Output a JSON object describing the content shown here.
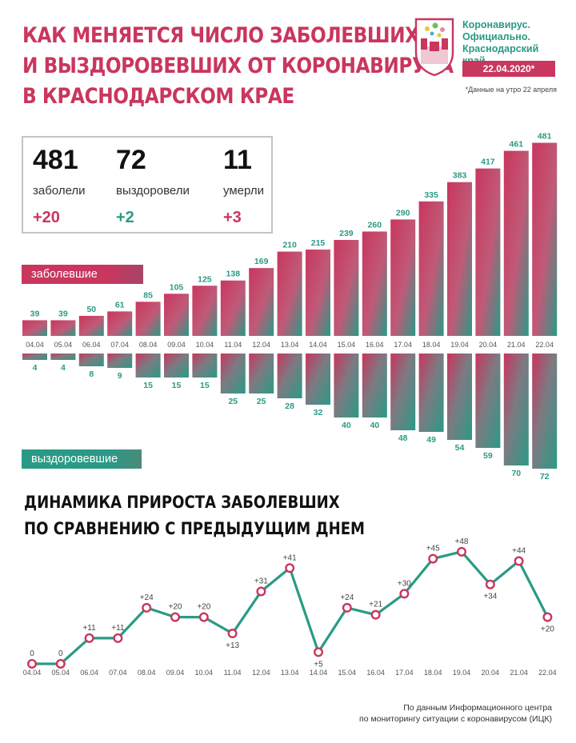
{
  "header": {
    "title_lines": [
      "КАК МЕНЯЕТСЯ ЧИСЛО ЗАБОЛЕВШИХ",
      "И ВЫЗДОРОВЕВШИХ ОТ КОРОНАВИРУСА",
      "В КРАСНОДАРСКОМ КРАЕ"
    ]
  },
  "brand": {
    "name_lines": [
      "Коронавирус.",
      "Официально.",
      "Краснодарский край"
    ],
    "date": "22.04.2020*",
    "note": "*Данные на утро 22 апреля"
  },
  "stats": [
    {
      "value": "481",
      "label": "заболели",
      "delta": "+20"
    },
    {
      "value": "72",
      "label": "выздоровели",
      "delta": "+2"
    },
    {
      "value": "11",
      "label": "умерли",
      "delta": "+3"
    }
  ],
  "pills": {
    "sick": "заболевшие",
    "recovered": "выздоровевшие"
  },
  "subtitle_lines": [
    "ДИНАМИКА ПРИРОСТА ЗАБОЛЕВШИХ",
    "ПО СРАВНЕНИЮ С ПРЕДЫДУЩИМ ДНЕМ"
  ],
  "source_lines": [
    "По данным Информационного центра",
    "по мониторингу ситуации с коронавирусом (ИЦК)"
  ],
  "colors": {
    "sick": "#c9365e",
    "recovered": "#2a9a86"
  },
  "chart_data": [
    {
      "type": "bar",
      "categories": [
        "04.04",
        "05.04",
        "06.04",
        "07.04",
        "08.04",
        "09.04",
        "10.04",
        "11.04",
        "12.04",
        "13.04",
        "14.04",
        "15.04",
        "16.04",
        "17.04",
        "18.04",
        "19.04",
        "20.04",
        "21.04",
        "22.04"
      ],
      "series": [
        {
          "name": "заболевшие",
          "values": [
            39,
            39,
            50,
            61,
            85,
            105,
            125,
            138,
            169,
            210,
            215,
            239,
            260,
            290,
            335,
            383,
            417,
            461,
            481
          ]
        },
        {
          "name": "выздоровевшие",
          "values": [
            4,
            4,
            8,
            9,
            15,
            15,
            15,
            25,
            25,
            28,
            32,
            40,
            40,
            48,
            49,
            54,
            59,
            70,
            72
          ]
        }
      ]
    },
    {
      "type": "line",
      "title": "ДИНАМИКА ПРИРОСТА ЗАБОЛЕВШИХ ПО СРАВНЕНИЮ С ПРЕДЫДУЩИМ ДНЕМ",
      "categories": [
        "04.04",
        "05.04",
        "06.04",
        "07.04",
        "08.04",
        "09.04",
        "10.04",
        "11.04",
        "12.04",
        "13.04",
        "14.04",
        "15.04",
        "16.04",
        "17.04",
        "18.04",
        "19.04",
        "20.04",
        "21.04",
        "22.04"
      ],
      "values": [
        0,
        0,
        11,
        11,
        24,
        20,
        20,
        13,
        31,
        41,
        5,
        24,
        21,
        30,
        45,
        48,
        34,
        44,
        20
      ],
      "labels": [
        "0",
        "0",
        "+11",
        "+11",
        "+24",
        "+20",
        "+20",
        "+13",
        "+31",
        "+41",
        "+5",
        "+24",
        "+21",
        "+30",
        "+45",
        "+48",
        "+34",
        "+44",
        "+20"
      ]
    }
  ]
}
